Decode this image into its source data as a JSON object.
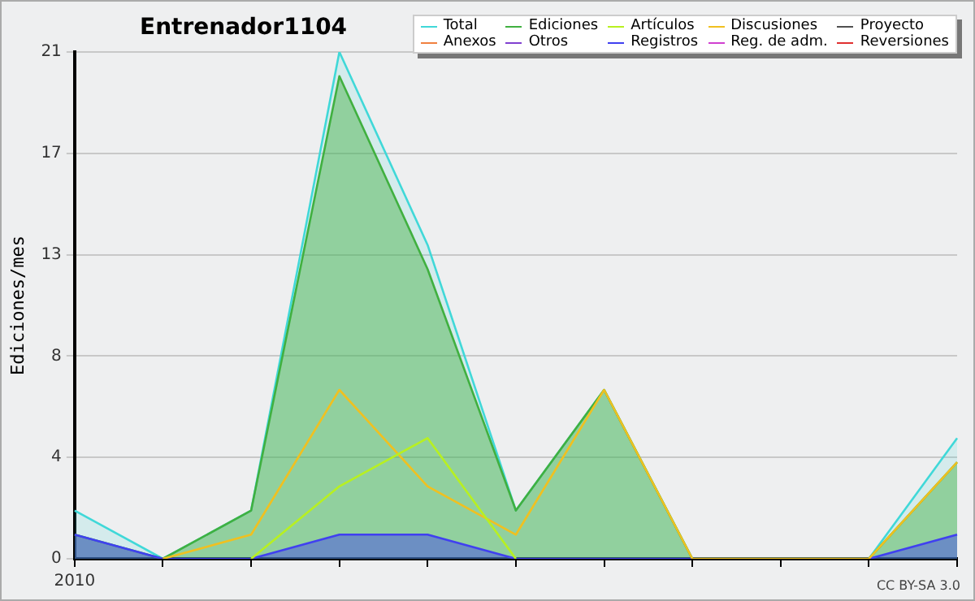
{
  "chart_data": {
    "type": "line",
    "title": "Entrenador1104",
    "ylabel": "Ediciones/mes",
    "categories": [
      "2010",
      null,
      null,
      null,
      null,
      null,
      null,
      null,
      null,
      null,
      null
    ],
    "series": [
      {
        "name": "Total",
        "type": "area",
        "color": "#40d8d8",
        "values": [
          2,
          0,
          2,
          21,
          13,
          2,
          7,
          0,
          0,
          0,
          5
        ]
      },
      {
        "name": "Ediciones",
        "type": "area",
        "color": "#40b040",
        "values": [
          1,
          0,
          2,
          20,
          12,
          2,
          7,
          0,
          0,
          0,
          4
        ]
      },
      {
        "name": "Artículos",
        "type": "line",
        "color": "#b8f020",
        "values": [
          null,
          null,
          0,
          3,
          5,
          0,
          null,
          null,
          null,
          null,
          null
        ]
      },
      {
        "name": "Discusiones",
        "type": "line",
        "color": "#f0c020",
        "values": [
          null,
          0,
          1,
          7,
          3,
          1,
          7,
          0,
          0,
          0,
          4
        ]
      },
      {
        "name": "Proyecto",
        "type": "line",
        "color": "#505050",
        "values": [
          null,
          null,
          null,
          null,
          null,
          null,
          null,
          null,
          null,
          null,
          null
        ]
      },
      {
        "name": "Anexos",
        "type": "line",
        "color": "#f08040",
        "values": [
          null,
          null,
          null,
          null,
          null,
          null,
          null,
          null,
          null,
          null,
          null
        ]
      },
      {
        "name": "Otros",
        "type": "line",
        "color": "#8040d0",
        "values": [
          null,
          null,
          null,
          null,
          null,
          null,
          null,
          null,
          null,
          null,
          null
        ]
      },
      {
        "name": "Registros",
        "type": "area",
        "color": "#4040f0",
        "values": [
          1,
          0,
          0,
          1,
          1,
          0,
          0,
          0,
          0,
          0,
          1
        ]
      },
      {
        "name": "Reg. de adm.",
        "type": "line",
        "color": "#d040d0",
        "values": [
          null,
          null,
          null,
          null,
          null,
          null,
          null,
          null,
          null,
          null,
          null
        ]
      },
      {
        "name": "Reversiones",
        "type": "line",
        "color": "#e03030",
        "values": [
          null,
          null,
          null,
          null,
          null,
          null,
          null,
          null,
          null,
          null,
          null
        ]
      }
    ],
    "ylim": [
      0,
      21
    ],
    "yticks": [
      0,
      {
        "value": 4.2,
        "label": "4"
      },
      {
        "value": 8.4,
        "label": "8"
      },
      {
        "value": 12.6,
        "label": "13"
      },
      {
        "value": 16.8,
        "label": "17"
      },
      21
    ],
    "grid": "y",
    "legend": "top right",
    "marker": "none",
    "line_style": "solid",
    "annotations": [
      "CC BY-SA 3.0"
    ]
  }
}
